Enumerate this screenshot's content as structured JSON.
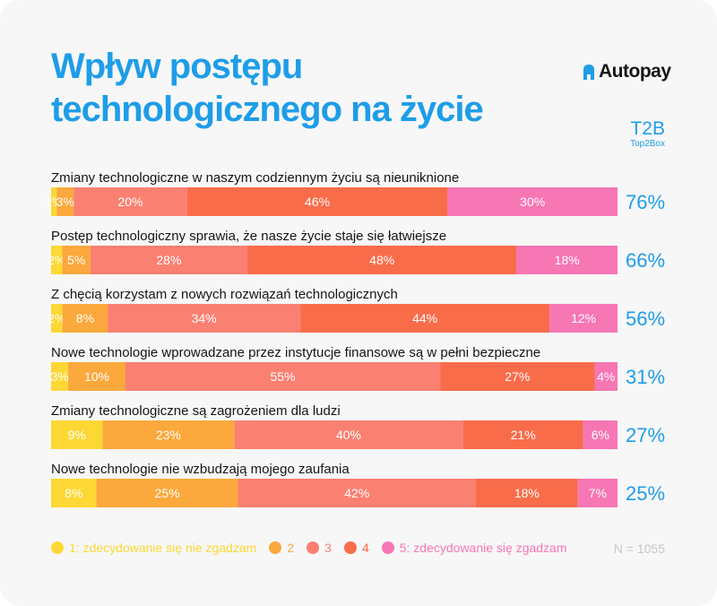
{
  "header": {
    "title": "Wpływ postępu technologicznego na życie",
    "logo_text": "Autopay",
    "t2b_label": "T2B",
    "t2b_sub": "Top2Box"
  },
  "colors": {
    "accent": "#1e9de8",
    "level1": "#fdd835",
    "level2": "#fba83c",
    "level3": "#fa8072",
    "level4": "#f96c4a",
    "level5": "#f776b4"
  },
  "chart_data": {
    "type": "bar",
    "orientation": "horizontal",
    "stacked": true,
    "unit": "%",
    "categories": [
      "Zmiany technologiczne w naszym codziennym życiu są nieuniknione",
      "Postęp technologiczny sprawia, że nasze życie staje się łatwiejsze",
      "Z chęcią korzystam z nowych rozwiązań technologicznych",
      "Nowe technologie wprowadzane przez instytucje finansowe są w pełni bezpieczne",
      "Zmiany technologiczne są zagrożeniem dla ludzi",
      "Nowe technologie nie wzbudzają mojego zaufania"
    ],
    "series": [
      {
        "name": "1: zdecydowanie się nie zgadzam",
        "values": [
          1,
          2,
          2,
          3,
          9,
          8
        ]
      },
      {
        "name": "2",
        "values": [
          3,
          5,
          8,
          10,
          23,
          25
        ]
      },
      {
        "name": "3",
        "values": [
          20,
          28,
          34,
          55,
          40,
          42
        ]
      },
      {
        "name": "4",
        "values": [
          46,
          48,
          44,
          27,
          21,
          18
        ]
      },
      {
        "name": "5: zdecydowanie się zgadzam",
        "values": [
          30,
          18,
          12,
          4,
          6,
          7
        ]
      }
    ],
    "t2b": [
      76,
      66,
      56,
      31,
      27,
      25
    ],
    "note": "N = 1055",
    "legend_position": "bottom"
  }
}
